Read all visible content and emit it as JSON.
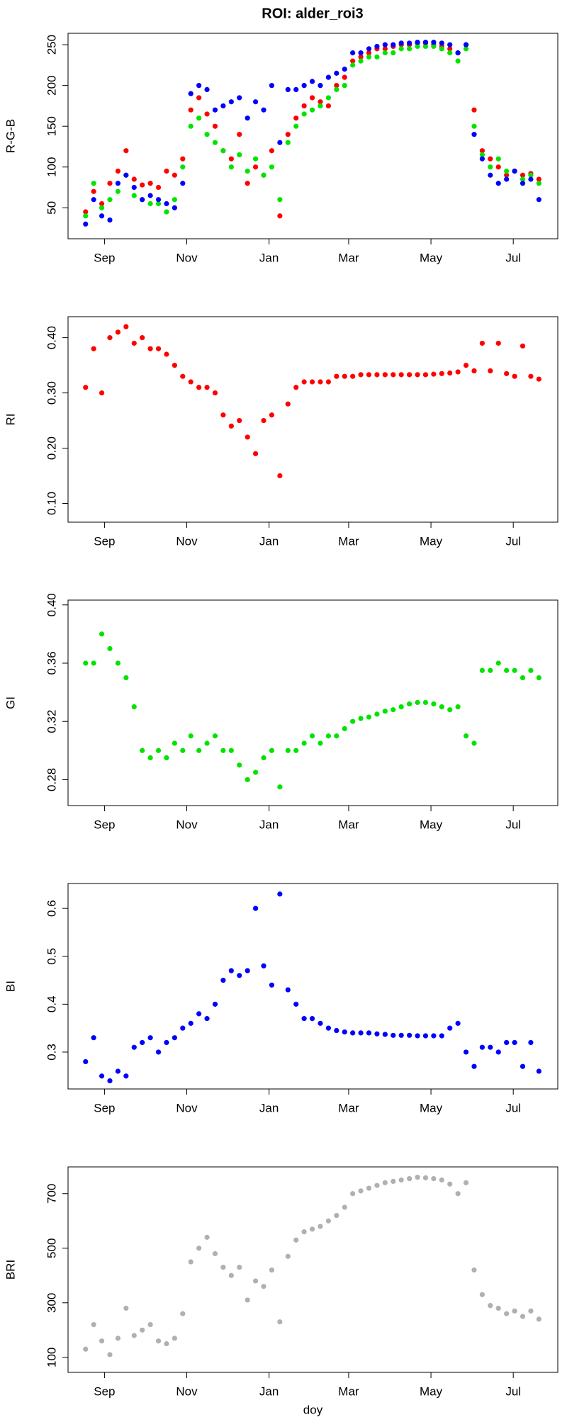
{
  "title": "ROI: alder_roi3",
  "chart_data": [
    {
      "type": "scatter",
      "y_label": "R-G-B",
      "x": [
        17,
        23,
        29,
        35,
        41,
        47,
        53,
        59,
        65,
        71,
        77,
        83,
        89,
        95,
        101,
        107,
        113,
        119,
        125,
        131,
        137,
        143,
        149,
        155,
        161,
        167,
        173,
        179,
        185,
        191,
        197,
        203,
        209,
        215,
        221,
        227,
        233,
        239,
        245,
        251,
        257,
        263,
        269,
        275,
        281,
        287,
        293,
        299,
        305,
        311,
        317,
        323,
        329,
        335,
        341,
        347,
        353
      ],
      "xlim": [
        4,
        367
      ],
      "xticks": [
        {
          "value": 31,
          "label": "Sep"
        },
        {
          "value": 92,
          "label": "Nov"
        },
        {
          "value": 153,
          "label": "Jan"
        },
        {
          "value": 212,
          "label": "Mar"
        },
        {
          "value": 273,
          "label": "May"
        },
        {
          "value": 334,
          "label": "Jul"
        }
      ],
      "ylim": [
        12,
        264
      ],
      "yticks": [
        50,
        100,
        150,
        200,
        250
      ],
      "series": [
        {
          "color": "#ff0000",
          "values": [
            45,
            70,
            55,
            80,
            95,
            120,
            85,
            78,
            80,
            75,
            95,
            90,
            110,
            170,
            185,
            165,
            150,
            120,
            110,
            140,
            80,
            100,
            90,
            120,
            40,
            140,
            160,
            175,
            185,
            180,
            175,
            200,
            210,
            230,
            235,
            240,
            245,
            245,
            248,
            250,
            250,
            252,
            252,
            250,
            248,
            245,
            240,
            250,
            170,
            120,
            110,
            100,
            90,
            95,
            90,
            92,
            85
          ]
        },
        {
          "color": "#00e400",
          "values": [
            40,
            80,
            50,
            60,
            70,
            90,
            65,
            60,
            55,
            55,
            45,
            60,
            100,
            150,
            160,
            140,
            130,
            120,
            100,
            115,
            95,
            110,
            90,
            100,
            60,
            130,
            150,
            165,
            170,
            175,
            185,
            195,
            200,
            225,
            230,
            235,
            235,
            240,
            240,
            245,
            245,
            248,
            248,
            248,
            245,
            240,
            230,
            245,
            150,
            115,
            100,
            110,
            95,
            95,
            85,
            90,
            80
          ]
        },
        {
          "color": "#0000ff",
          "values": [
            30,
            60,
            40,
            35,
            80,
            90,
            75,
            60,
            65,
            60,
            55,
            50,
            80,
            190,
            200,
            195,
            170,
            175,
            180,
            185,
            160,
            180,
            170,
            200,
            130,
            195,
            195,
            200,
            205,
            200,
            210,
            215,
            220,
            240,
            240,
            245,
            248,
            250,
            250,
            252,
            252,
            253,
            253,
            253,
            252,
            250,
            240,
            250,
            140,
            110,
            90,
            80,
            85,
            95,
            80,
            85,
            60
          ]
        }
      ]
    },
    {
      "type": "scatter",
      "y_label": "RI",
      "x": [
        17,
        23,
        29,
        35,
        41,
        47,
        53,
        59,
        65,
        71,
        77,
        83,
        89,
        95,
        101,
        107,
        113,
        119,
        125,
        131,
        137,
        143,
        149,
        155,
        161,
        167,
        173,
        179,
        185,
        191,
        197,
        203,
        209,
        215,
        221,
        227,
        233,
        239,
        245,
        251,
        257,
        263,
        269,
        275,
        281,
        287,
        293,
        299,
        305,
        311,
        317,
        323,
        329,
        335,
        341,
        347,
        353
      ],
      "xlim": [
        4,
        367
      ],
      "xticks": [
        {
          "value": 31,
          "label": "Sep"
        },
        {
          "value": 92,
          "label": "Nov"
        },
        {
          "value": 153,
          "label": "Jan"
        },
        {
          "value": 212,
          "label": "Mar"
        },
        {
          "value": 273,
          "label": "May"
        },
        {
          "value": 334,
          "label": "Jul"
        }
      ],
      "ylim": [
        0.066,
        0.438
      ],
      "yticks": [
        {
          "value": 0.1,
          "label": "0.10"
        },
        {
          "value": 0.2,
          "label": "0.20"
        },
        {
          "value": 0.3,
          "label": "0.30"
        },
        {
          "value": 0.4,
          "label": "0.40"
        }
      ],
      "color": "#ff0000",
      "values": [
        0.31,
        0.38,
        0.3,
        0.4,
        0.41,
        0.42,
        0.39,
        0.4,
        0.38,
        0.38,
        0.37,
        0.35,
        0.33,
        0.32,
        0.31,
        0.31,
        0.3,
        0.26,
        0.24,
        0.25,
        0.22,
        0.19,
        0.25,
        0.26,
        0.15,
        0.28,
        0.31,
        0.32,
        0.32,
        0.32,
        0.32,
        0.33,
        0.33,
        0.33,
        0.333,
        0.333,
        0.333,
        0.333,
        0.333,
        0.333,
        0.333,
        0.333,
        0.333,
        0.334,
        0.335,
        0.336,
        0.338,
        0.35,
        0.34,
        0.39,
        0.34,
        0.39,
        0.335,
        0.33,
        0.385,
        0.33,
        0.325
      ]
    },
    {
      "type": "scatter",
      "y_label": "GI",
      "x": [
        17,
        23,
        29,
        35,
        41,
        47,
        53,
        59,
        65,
        71,
        77,
        83,
        89,
        95,
        101,
        107,
        113,
        119,
        125,
        131,
        137,
        143,
        149,
        155,
        161,
        167,
        173,
        179,
        185,
        191,
        197,
        203,
        209,
        215,
        221,
        227,
        233,
        239,
        245,
        251,
        257,
        263,
        269,
        275,
        281,
        287,
        293,
        299,
        305,
        311,
        317,
        323,
        329,
        335,
        341,
        347,
        353
      ],
      "xlim": [
        4,
        367
      ],
      "xticks": [
        {
          "value": 31,
          "label": "Sep"
        },
        {
          "value": 92,
          "label": "Nov"
        },
        {
          "value": 153,
          "label": "Jan"
        },
        {
          "value": 212,
          "label": "Mar"
        },
        {
          "value": 273,
          "label": "May"
        },
        {
          "value": 334,
          "label": "Jul"
        }
      ],
      "ylim": [
        0.2622,
        0.4033
      ],
      "yticks": [
        0.28,
        0.32,
        0.36,
        {
          "value": 0.4,
          "label": "0.40"
        }
      ],
      "color": "#00e400",
      "values": [
        0.36,
        0.36,
        0.38,
        0.37,
        0.36,
        0.35,
        0.33,
        0.3,
        0.295,
        0.3,
        0.295,
        0.305,
        0.3,
        0.31,
        0.3,
        0.305,
        0.31,
        0.3,
        0.3,
        0.29,
        0.28,
        0.285,
        0.295,
        0.3,
        0.275,
        0.3,
        0.3,
        0.305,
        0.31,
        0.305,
        0.31,
        0.31,
        0.315,
        0.32,
        0.322,
        0.323,
        0.325,
        0.327,
        0.328,
        0.33,
        0.332,
        0.333,
        0.333,
        0.332,
        0.33,
        0.328,
        0.33,
        0.31,
        0.305,
        0.355,
        0.355,
        0.36,
        0.355,
        0.355,
        0.35,
        0.355,
        0.35
      ]
    },
    {
      "type": "scatter",
      "y_label": "BI",
      "x": [
        17,
        23,
        29,
        35,
        41,
        47,
        53,
        59,
        65,
        71,
        77,
        83,
        89,
        95,
        101,
        107,
        113,
        119,
        125,
        131,
        137,
        143,
        149,
        155,
        161,
        167,
        173,
        179,
        185,
        191,
        197,
        203,
        209,
        215,
        221,
        227,
        233,
        239,
        245,
        251,
        257,
        263,
        269,
        275,
        281,
        287,
        293,
        299,
        305,
        311,
        317,
        323,
        329,
        335,
        341,
        347,
        353
      ],
      "xlim": [
        4,
        367
      ],
      "xticks": [
        {
          "value": 31,
          "label": "Sep"
        },
        {
          "value": 92,
          "label": "Nov"
        },
        {
          "value": 153,
          "label": "Jan"
        },
        {
          "value": 212,
          "label": "Mar"
        },
        {
          "value": 273,
          "label": "May"
        },
        {
          "value": 334,
          "label": "Jul"
        }
      ],
      "ylim": [
        0.223,
        0.652
      ],
      "yticks": [
        0.3,
        0.4,
        0.5,
        0.6
      ],
      "color": "#0000ff",
      "values": [
        0.28,
        0.33,
        0.25,
        0.24,
        0.26,
        0.25,
        0.31,
        0.32,
        0.33,
        0.3,
        0.32,
        0.33,
        0.35,
        0.36,
        0.38,
        0.37,
        0.4,
        0.45,
        0.47,
        0.46,
        0.47,
        0.6,
        0.48,
        0.44,
        0.63,
        0.43,
        0.4,
        0.37,
        0.37,
        0.36,
        0.35,
        0.345,
        0.342,
        0.34,
        0.34,
        0.34,
        0.338,
        0.337,
        0.335,
        0.335,
        0.335,
        0.334,
        0.334,
        0.334,
        0.334,
        0.35,
        0.36,
        0.3,
        0.27,
        0.31,
        0.31,
        0.3,
        0.32,
        0.32,
        0.27,
        0.32,
        0.26
      ]
    },
    {
      "type": "scatter",
      "y_label": "BRI",
      "x_label": "doy",
      "x": [
        17,
        23,
        29,
        35,
        41,
        47,
        53,
        59,
        65,
        71,
        77,
        83,
        89,
        95,
        101,
        107,
        113,
        119,
        125,
        131,
        137,
        143,
        149,
        155,
        161,
        167,
        173,
        179,
        185,
        191,
        197,
        203,
        209,
        215,
        221,
        227,
        233,
        239,
        245,
        251,
        257,
        263,
        269,
        275,
        281,
        287,
        293,
        299,
        305,
        311,
        317,
        323,
        329,
        335,
        341,
        347,
        353
      ],
      "xlim": [
        4,
        367
      ],
      "xticks": [
        {
          "value": 31,
          "label": "Sep"
        },
        {
          "value": 92,
          "label": "Nov"
        },
        {
          "value": 153,
          "label": "Jan"
        },
        {
          "value": 212,
          "label": "Mar"
        },
        {
          "value": 273,
          "label": "May"
        },
        {
          "value": 334,
          "label": "Jul"
        }
      ],
      "ylim": [
        45,
        798
      ],
      "yticks": [
        100,
        300,
        500,
        700
      ],
      "color": "#b0b0b0",
      "values": [
        130,
        220,
        160,
        110,
        170,
        280,
        180,
        200,
        220,
        160,
        150,
        170,
        260,
        450,
        500,
        540,
        480,
        430,
        400,
        430,
        310,
        380,
        360,
        420,
        230,
        470,
        530,
        560,
        570,
        580,
        600,
        620,
        650,
        700,
        710,
        720,
        730,
        740,
        745,
        750,
        755,
        760,
        758,
        755,
        750,
        735,
        700,
        740,
        420,
        330,
        290,
        280,
        260,
        270,
        250,
        270,
        240
      ]
    }
  ]
}
